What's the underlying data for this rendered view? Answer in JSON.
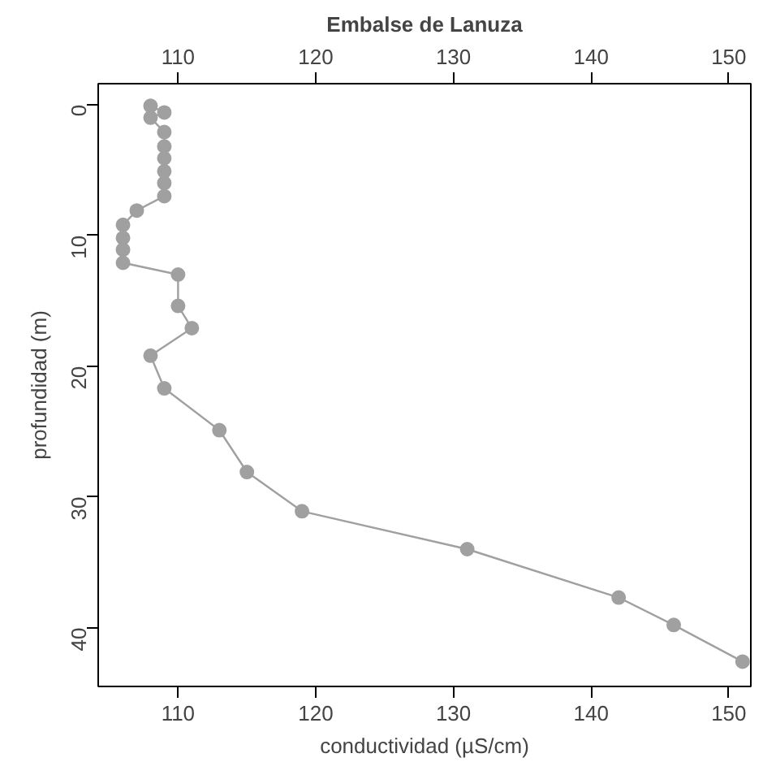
{
  "chart_data": {
    "type": "line",
    "title": "Embalse de Lanuza",
    "xlabel": "conductividad (µS/cm)",
    "ylabel": "profundidad (m)",
    "series": [
      {
        "color": "#a0a0a0",
        "x": [
          108,
          109,
          108,
          109,
          109,
          109,
          109,
          109,
          109,
          107,
          106,
          106,
          106,
          106,
          110,
          110,
          111,
          108,
          109,
          113,
          115,
          119,
          131,
          142,
          146,
          151
        ],
        "values": [
          0.1,
          0.6,
          1.0,
          2.1,
          3.2,
          4.1,
          5.1,
          6.0,
          7.0,
          8.1,
          9.2,
          10.2,
          11.1,
          12.1,
          13.0,
          15.4,
          17.1,
          19.2,
          21.7,
          24.9,
          28.1,
          31.1,
          34.0,
          37.7,
          39.8,
          42.6
        ]
      }
    ],
    "xlim": [
      104.2,
      151.6
    ],
    "xticks": [
      110,
      120,
      130,
      140,
      150
    ],
    "x2lim": [
      104.2,
      151.6
    ],
    "x2ticks": [
      110,
      120,
      130,
      140,
      150
    ],
    "ylim": [
      44.5,
      -1.6
    ],
    "yticks": [
      0,
      10,
      20,
      30,
      40
    ],
    "grid": false,
    "marker": "circle",
    "line_style": "solid"
  }
}
